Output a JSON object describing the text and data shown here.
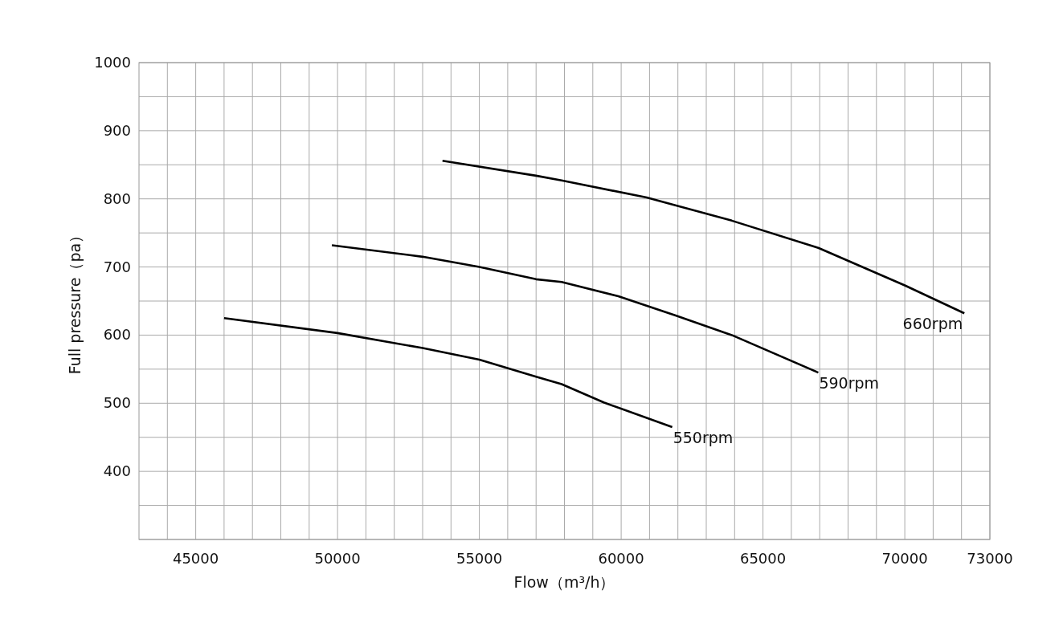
{
  "chart_data": {
    "type": "line",
    "xlabel": "Flow（m³/h）",
    "ylabel": "Full pressure（pa）",
    "xlim": [
      43000,
      73000
    ],
    "ylim": [
      300,
      1000
    ],
    "xticks": [
      {
        "value": 44000,
        "label": null
      },
      45000,
      {
        "value": 46000,
        "label": null
      },
      {
        "value": 47000,
        "label": null
      },
      {
        "value": 48000,
        "label": null
      },
      {
        "value": 49000,
        "label": null
      },
      50000,
      {
        "value": 51000,
        "label": null
      },
      {
        "value": 52000,
        "label": null
      },
      {
        "value": 53000,
        "label": null
      },
      {
        "value": 54000,
        "label": null
      },
      55000,
      {
        "value": 56000,
        "label": null
      },
      {
        "value": 57000,
        "label": null
      },
      {
        "value": 58000,
        "label": null
      },
      {
        "value": 59000,
        "label": null
      },
      60000,
      {
        "value": 61000,
        "label": null
      },
      {
        "value": 62000,
        "label": null
      },
      {
        "value": 63000,
        "label": null
      },
      {
        "value": 64000,
        "label": null
      },
      65000,
      {
        "value": 66000,
        "label": null
      },
      {
        "value": 67000,
        "label": null
      },
      {
        "value": 68000,
        "label": null
      },
      {
        "value": 69000,
        "label": null
      },
      70000,
      {
        "value": 71000,
        "label": null
      },
      {
        "value": 72000,
        "label": null
      },
      73000
    ],
    "yticks": [
      {
        "value": 300,
        "label": null
      },
      {
        "value": 350,
        "label": null
      },
      400,
      {
        "value": 450,
        "label": null
      },
      500,
      {
        "value": 550,
        "label": null
      },
      600,
      {
        "value": 650,
        "label": null
      },
      700,
      {
        "value": 750,
        "label": null
      },
      800,
      {
        "value": 850,
        "label": null
      },
      900,
      {
        "value": 950,
        "label": null
      },
      1000
    ],
    "grid": true,
    "line_style": "solid",
    "series": [
      {
        "name": "550rpm",
        "color": "#000000",
        "x": [
          46000,
          50000,
          53000,
          55000,
          57000,
          57900,
          59400,
          61800
        ],
        "values": [
          625,
          603,
          581,
          564,
          539,
          528,
          501,
          465
        ]
      },
      {
        "name": "590rpm",
        "color": "#000000",
        "x": [
          49800,
          53000,
          55000,
          57000,
          57900,
          59900,
          61900,
          63900,
          66950
        ],
        "values": [
          732,
          715,
          700,
          682,
          678,
          657,
          629,
          600,
          545
        ]
      },
      {
        "name": "660rpm",
        "color": "#000000",
        "x": [
          53700,
          57000,
          57900,
          60900,
          63900,
          66950,
          70000,
          72100
        ],
        "values": [
          856,
          834,
          827,
          802,
          768,
          728,
          673,
          632
        ]
      }
    ]
  }
}
